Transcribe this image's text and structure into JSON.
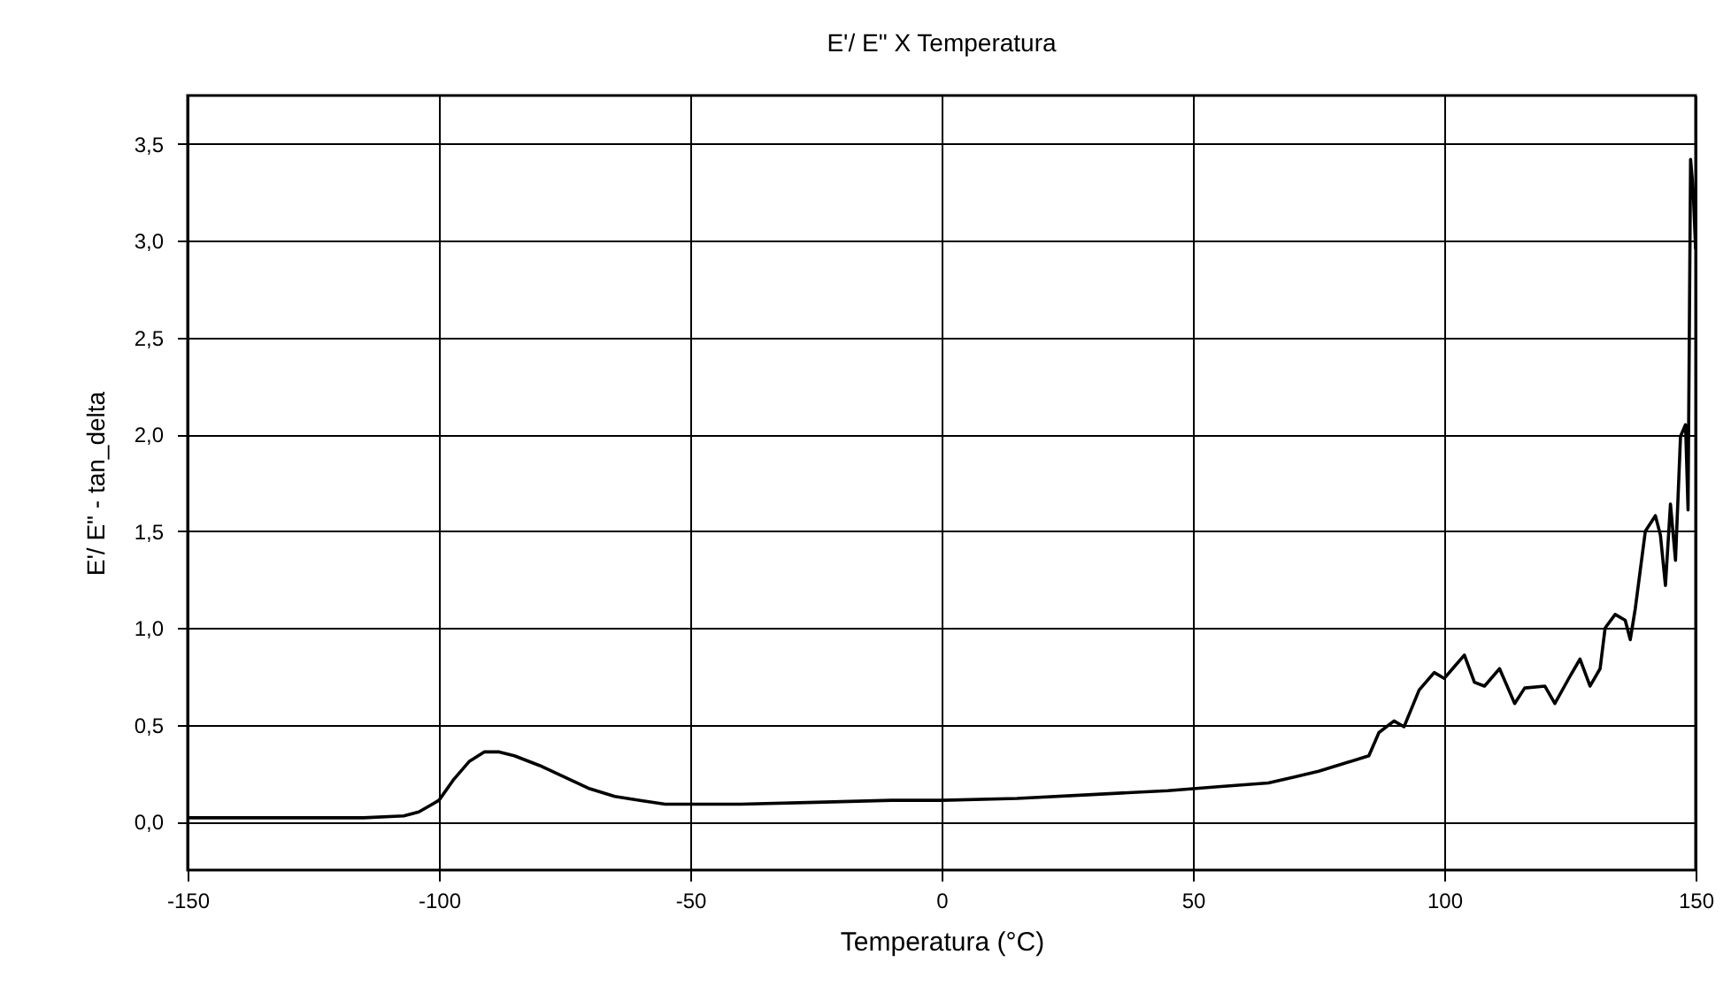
{
  "chart_data": {
    "type": "line",
    "title": "E'/ E\" X Temperatura",
    "xlabel": "Temperatura (°C)",
    "ylabel": "E'/ E\" - tan_delta",
    "xlim": [
      -150,
      150
    ],
    "xticks": [
      -150,
      -100,
      -50,
      0,
      50,
      100,
      150
    ],
    "ylim": [
      -0.25,
      3.75
    ],
    "yticks": [
      {
        "value": 0,
        "label": "0,0"
      },
      {
        "value": 0.5,
        "label": "0,5"
      },
      {
        "value": 1,
        "label": "1,0"
      },
      {
        "value": 1.5,
        "label": "1,5"
      },
      {
        "value": 2,
        "label": "2,0"
      },
      {
        "value": 2.5,
        "label": "2,5"
      },
      {
        "value": 3,
        "label": "3,0"
      },
      {
        "value": 3.5,
        "label": "3,5"
      }
    ],
    "grid": true,
    "marker": "none",
    "line_style": "solid",
    "series": [
      {
        "color": "#000000",
        "x": [
          -150,
          -130,
          -115,
          -107,
          -104,
          -102,
          -100,
          -97,
          -94,
          -91,
          -88,
          -85,
          -80,
          -75,
          -70,
          -65,
          -60,
          -55,
          -50,
          -40,
          -25,
          -10,
          0,
          15,
          30,
          45,
          55,
          65,
          70,
          75,
          80,
          85,
          87,
          90,
          92,
          95,
          98,
          100,
          102,
          104,
          106,
          108,
          111,
          114,
          116,
          120,
          122,
          125,
          127,
          129,
          131,
          132,
          134,
          136,
          137,
          138,
          140,
          142,
          143,
          144,
          145,
          146,
          147,
          148,
          148.5,
          149,
          149.5,
          150
        ],
        "values": [
          0.02,
          0.02,
          0.02,
          0.03,
          0.05,
          0.08,
          0.11,
          0.22,
          0.31,
          0.36,
          0.36,
          0.34,
          0.29,
          0.23,
          0.17,
          0.13,
          0.11,
          0.09,
          0.09,
          0.09,
          0.1,
          0.11,
          0.11,
          0.12,
          0.14,
          0.16,
          0.18,
          0.2,
          0.23,
          0.26,
          0.3,
          0.34,
          0.46,
          0.52,
          0.49,
          0.68,
          0.77,
          0.74,
          0.8,
          0.86,
          0.72,
          0.7,
          0.79,
          0.61,
          0.69,
          0.7,
          0.61,
          0.75,
          0.84,
          0.7,
          0.79,
          1.0,
          1.07,
          1.04,
          0.94,
          1.1,
          1.5,
          1.58,
          1.48,
          1.22,
          1.64,
          1.35,
          1.99,
          2.05,
          1.61,
          3.42,
          3.27,
          2.96
        ]
      }
    ]
  }
}
